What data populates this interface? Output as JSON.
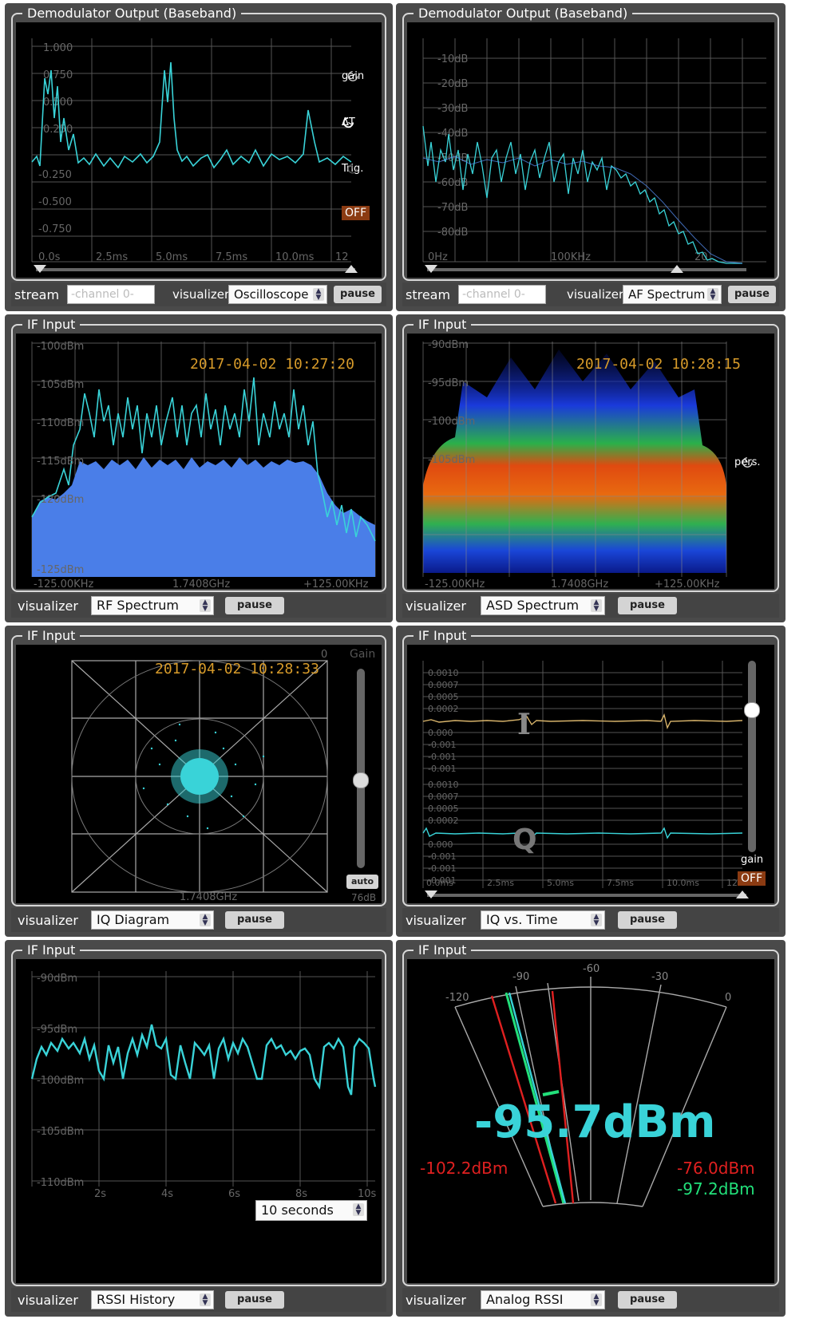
{
  "panels": {
    "p1": {
      "title": "Demodulator Output (Baseband)",
      "stream_label": "stream",
      "stream_placeholder": "-channel 0-",
      "visualizer_label": "visualizer",
      "visualizer": "Oscilloscope",
      "pause": "pause",
      "yticks": [
        "1.000",
        "0.750",
        "0.500",
        "0.250",
        "-0.250",
        "-0.500",
        "-0.750"
      ],
      "xticks": [
        "0.0s",
        "2.5ms",
        "5.0ms",
        "7.5ms",
        "10.0ms",
        "12"
      ],
      "knobs": {
        "gain": "gain",
        "dt": "ΔT",
        "trig": "Trig.",
        "off": "OFF"
      }
    },
    "p2": {
      "title": "Demodulator Output (Baseband)",
      "stream_label": "stream",
      "stream_placeholder": "-channel 0-",
      "visualizer_label": "visualizer",
      "visualizer": "AF Spectrum",
      "pause": "pause",
      "yticks": [
        "-10dB",
        "-20dB",
        "-30dB",
        "-40dB",
        "-50dB",
        "-60dB",
        "-70dB",
        "-80dB"
      ],
      "xticks": [
        "0Hz",
        "100KHz",
        "20"
      ]
    },
    "p3": {
      "title": "IF Input",
      "visualizer_label": "visualizer",
      "visualizer": "RF Spectrum",
      "pause": "pause",
      "timestamp": "2017-04-02 10:27:20",
      "yticks": [
        "-100dBm",
        "-105dBm",
        "-110dBm",
        "-115dBm",
        "-120dBm",
        "-125dBm"
      ],
      "xticks": [
        "-125.00KHz",
        "1.7408GHz",
        "+125.00KHz"
      ]
    },
    "p4": {
      "title": "IF Input",
      "visualizer_label": "visualizer",
      "visualizer": "ASD Spectrum",
      "pause": "pause",
      "timestamp": "2017-04-02 10:28:15",
      "pers": "pers.",
      "yticks": [
        "-90dBm",
        "-95dBm",
        "-100dBm",
        "-105dBm"
      ],
      "xticks": [
        "-125.00KHz",
        "1.7408GHz",
        "+125.00KHz"
      ]
    },
    "p5": {
      "title": "IF Input",
      "visualizer_label": "visualizer",
      "visualizer": "IQ Diagram",
      "pause": "pause",
      "timestamp": "2017-04-02 10:28:33",
      "gain_label": "Gain",
      "auto": "auto",
      "gain_value": "76dB",
      "center": "1.7408GHz",
      "zero": "0"
    },
    "p6": {
      "title": "IF Input",
      "visualizer_label": "visualizer",
      "visualizer": "IQ vs. Time",
      "pause": "pause",
      "i_label": "I",
      "q_label": "Q",
      "gain_label": "gain",
      "off": "OFF",
      "yticks_i": [
        "0.0010",
        "0.0007",
        "0.0005",
        "0.0002",
        "0.000",
        "-0.001",
        "-0.001",
        "-0.001"
      ],
      "yticks_q": [
        "0.0010",
        "0.0007",
        "0.0005",
        "0.0002",
        "0.000",
        "-0.001",
        "-0.001",
        "-0.001"
      ],
      "xticks": [
        "0.0ms",
        "2.5ms",
        "5.0ms",
        "7.5ms",
        "10.0ms",
        "12"
      ]
    },
    "p7": {
      "title": "IF Input",
      "visualizer_label": "visualizer",
      "visualizer": "RSSI History",
      "pause": "pause",
      "range": "10 seconds",
      "yticks": [
        "-90dBm",
        "-95dBm",
        "-100dBm",
        "-105dBm",
        "-110dBm"
      ],
      "xticks": [
        "2s",
        "4s",
        "6s",
        "8s",
        "10s"
      ]
    },
    "p8": {
      "title": "IF Input",
      "visualizer_label": "visualizer",
      "visualizer": "Analog RSSI",
      "pause": "pause",
      "reading": "-95.7dBm",
      "min": "-102.2dBm",
      "max": "-76.0dBm",
      "avg": "-97.2dBm",
      "scale": [
        "-120",
        "-90",
        "-60",
        "-30",
        "0"
      ]
    }
  },
  "colors": {
    "trace": "#39d3d8",
    "fill": "#4a7ee8",
    "timestamp": "#d79b2a",
    "red": "#e02020",
    "green": "#22e07a"
  }
}
